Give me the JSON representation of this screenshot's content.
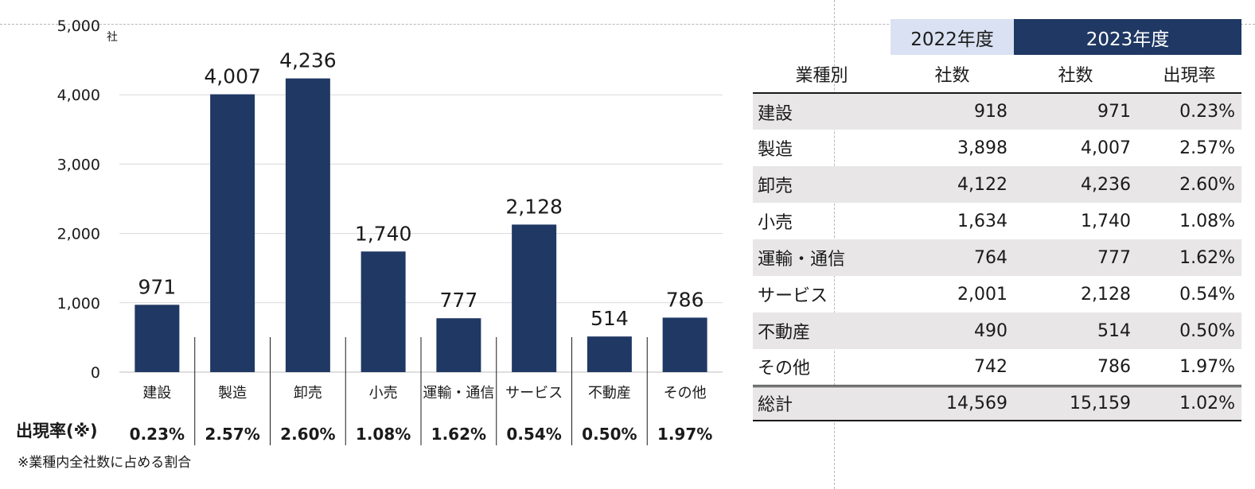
{
  "chart_data": {
    "type": "bar",
    "unit": "社",
    "ylim": [
      0,
      5000
    ],
    "yticks": [
      "0",
      "1,000",
      "2,000",
      "3,000",
      "4,000",
      "5,000"
    ],
    "grid": true,
    "categories": [
      "建設",
      "製造",
      "卸売",
      "小売",
      "運輸・通信",
      "サービス",
      "不動産",
      "その他"
    ],
    "values": [
      971,
      4007,
      4236,
      1740,
      777,
      2128,
      514,
      786
    ],
    "value_labels": [
      "971",
      "4,007",
      "4,236",
      "1,740",
      "777",
      "2,128",
      "514",
      "786"
    ],
    "bar_color": "#203864",
    "rate_heading": "出現率(※)",
    "rates": [
      "0.23%",
      "2.57%",
      "2.60%",
      "1.08%",
      "1.62%",
      "0.54%",
      "0.50%",
      "1.97%"
    ],
    "footnote": "※業種内全社数に占める割合"
  },
  "table": {
    "year_2022": "2022年度",
    "year_2023": "2023年度",
    "headers": [
      "業種別",
      "社数",
      "社数",
      "出現率"
    ],
    "rows": [
      {
        "industry": "建設",
        "count_2022": "918",
        "count_2023": "971",
        "rate": "0.23%"
      },
      {
        "industry": "製造",
        "count_2022": "3,898",
        "count_2023": "4,007",
        "rate": "2.57%"
      },
      {
        "industry": "卸売",
        "count_2022": "4,122",
        "count_2023": "4,236",
        "rate": "2.60%"
      },
      {
        "industry": "小売",
        "count_2022": "1,634",
        "count_2023": "1,740",
        "rate": "1.08%"
      },
      {
        "industry": "運輸・通信",
        "count_2022": "764",
        "count_2023": "777",
        "rate": "1.62%"
      },
      {
        "industry": "サービス",
        "count_2022": "2,001",
        "count_2023": "2,128",
        "rate": "0.54%"
      },
      {
        "industry": "不動産",
        "count_2022": "490",
        "count_2023": "514",
        "rate": "0.50%"
      },
      {
        "industry": "その他",
        "count_2022": "742",
        "count_2023": "786",
        "rate": "1.97%"
      }
    ],
    "total": {
      "industry": "総計",
      "count_2022": "14,569",
      "count_2023": "15,159",
      "rate": "1.02%"
    }
  }
}
